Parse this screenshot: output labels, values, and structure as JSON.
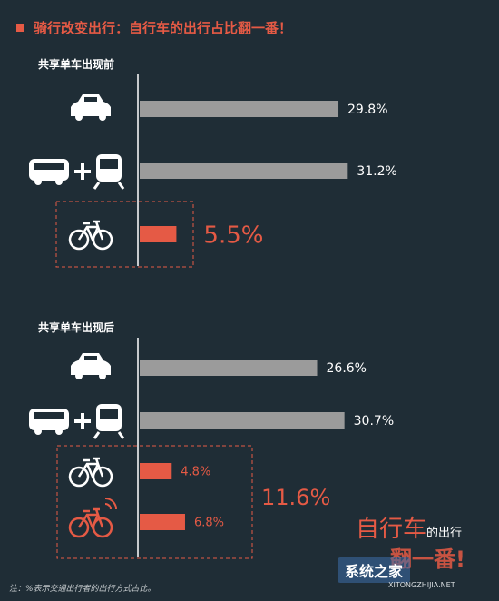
{
  "title": "骑行改变出行：自行车的出行占比翻一番！",
  "colors": {
    "bar": "#9b9b9b",
    "accent": "#e55a45",
    "background": "#1f2d36"
  },
  "chart_data": [
    {
      "type": "bar",
      "orientation": "horizontal",
      "title": "共享单车出现前",
      "categories": [
        "car-icon",
        "bus-train-icon",
        "bicycle-icon"
      ],
      "values": [
        29.8,
        31.2,
        5.5
      ],
      "labels": [
        "29.8%",
        "31.2%",
        "5.5%"
      ],
      "highlight": [
        false,
        false,
        true
      ]
    },
    {
      "type": "bar",
      "orientation": "horizontal",
      "title": "共享单车出现后",
      "categories": [
        "car-icon",
        "bus-train-icon",
        "bicycle-icon",
        "shared-bike-icon"
      ],
      "values": [
        26.6,
        30.7,
        4.8,
        6.8
      ],
      "labels": [
        "26.6%",
        "30.7%",
        "4.8%",
        "6.8%"
      ],
      "highlight": [
        false,
        false,
        true,
        true
      ],
      "group_total": "11.6%"
    }
  ],
  "note_line1": "自行车",
  "note_line1_small": "的出行",
  "note_line2": "翻一番!",
  "footnote": "注：%表示交通出行者的出行方式占比。",
  "watermark": "系统之家",
  "watermark_sub": "XITONGZHIJIA.NET"
}
